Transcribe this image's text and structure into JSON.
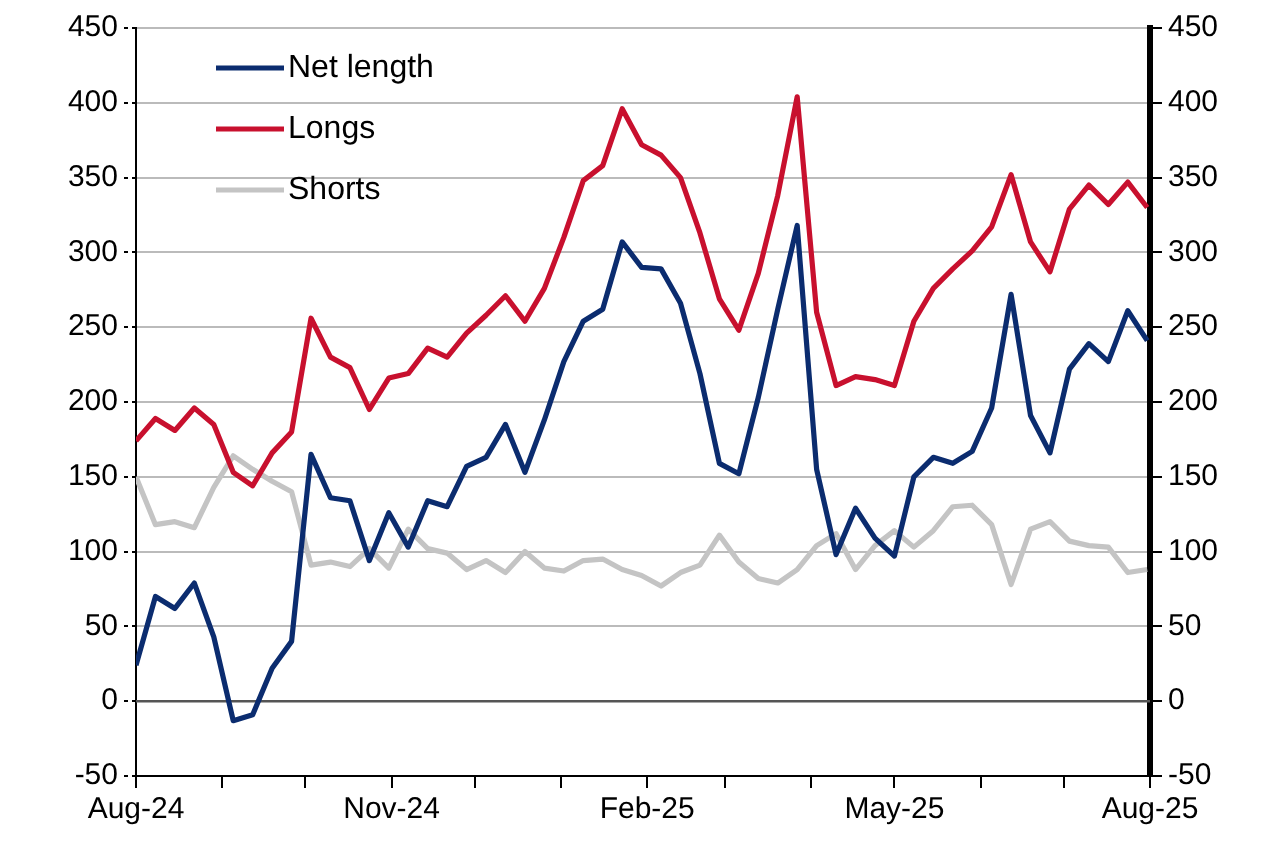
{
  "chart_data": {
    "type": "line",
    "x": [
      "2024-08-01",
      "2024-08-08",
      "2024-08-15",
      "2024-08-22",
      "2024-08-29",
      "2024-09-05",
      "2024-09-12",
      "2024-09-19",
      "2024-09-26",
      "2024-10-03",
      "2024-10-10",
      "2024-10-17",
      "2024-10-24",
      "2024-10-31",
      "2024-11-07",
      "2024-11-14",
      "2024-11-21",
      "2024-11-28",
      "2024-12-05",
      "2024-12-12",
      "2024-12-19",
      "2024-12-26",
      "2025-01-02",
      "2025-01-09",
      "2025-01-16",
      "2025-01-23",
      "2025-01-30",
      "2025-02-06",
      "2025-02-13",
      "2025-02-20",
      "2025-02-27",
      "2025-03-06",
      "2025-03-13",
      "2025-03-20",
      "2025-03-27",
      "2025-04-03",
      "2025-04-10",
      "2025-04-17",
      "2025-04-24",
      "2025-05-01",
      "2025-05-08",
      "2025-05-15",
      "2025-05-22",
      "2025-05-29",
      "2025-06-05",
      "2025-06-12",
      "2025-06-19",
      "2025-06-26",
      "2025-07-03",
      "2025-07-10",
      "2025-07-17",
      "2025-07-24",
      "2025-07-31"
    ],
    "series": [
      {
        "name": "Net length",
        "color": "#0b2c6f",
        "values": [
          24,
          70,
          62,
          79,
          43,
          -13,
          -9,
          22,
          40,
          165,
          136,
          134,
          94,
          126,
          103,
          134,
          130,
          157,
          163,
          185,
          153,
          188,
          227,
          254,
          262,
          307,
          290,
          289,
          266,
          219,
          159,
          152,
          203,
          262,
          318,
          155,
          98,
          129,
          109,
          97,
          150,
          163,
          159,
          167,
          196,
          272,
          191,
          166,
          222,
          239,
          227,
          261,
          241
        ]
      },
      {
        "name": "Longs",
        "color": "#c8102e",
        "values": [
          174,
          189,
          181,
          196,
          185,
          153,
          144,
          166,
          180,
          256,
          230,
          223,
          195,
          216,
          219,
          236,
          230,
          246,
          258,
          271,
          254,
          276,
          310,
          348,
          358,
          396,
          372,
          365,
          350,
          313,
          269,
          248,
          286,
          338,
          404,
          260,
          211,
          217,
          215,
          211,
          254,
          276,
          289,
          301,
          317,
          352,
          307,
          287,
          329,
          345,
          332,
          347,
          330
        ]
      },
      {
        "name": "Shorts",
        "color": "#c4c4c4",
        "values": [
          150,
          118,
          120,
          116,
          143,
          164,
          155,
          147,
          140,
          91,
          93,
          90,
          102,
          89,
          115,
          102,
          99,
          88,
          94,
          86,
          100,
          89,
          87,
          94,
          95,
          88,
          84,
          77,
          86,
          91,
          111,
          93,
          82,
          79,
          88,
          104,
          112,
          88,
          104,
          114,
          103,
          114,
          130,
          131,
          118,
          78,
          115,
          120,
          107,
          104,
          103,
          86,
          88
        ]
      }
    ],
    "xlim": [
      "2024-08-01",
      "2025-08-01"
    ],
    "xticks": [
      {
        "value": "2024-08-01",
        "label": "Aug-24"
      },
      {
        "value": "2024-09-01",
        "label": null
      },
      {
        "value": "2024-10-01",
        "label": null
      },
      {
        "value": "2024-11-01",
        "label": "Nov-24"
      },
      {
        "value": "2024-12-01",
        "label": null
      },
      {
        "value": "2025-01-01",
        "label": null
      },
      {
        "value": "2025-02-01",
        "label": "Feb-25"
      },
      {
        "value": "2025-03-01",
        "label": null
      },
      {
        "value": "2025-04-01",
        "label": null
      },
      {
        "value": "2025-05-01",
        "label": "May-25"
      },
      {
        "value": "2025-06-01",
        "label": null
      },
      {
        "value": "2025-07-01",
        "label": null
      },
      {
        "value": "2025-08-01",
        "label": "Aug-25"
      }
    ],
    "ylim": [
      -50,
      450
    ],
    "yticks": [
      -50,
      0,
      50,
      100,
      150,
      200,
      250,
      300,
      350,
      400,
      450
    ],
    "y2lim": [
      -50,
      450
    ],
    "y2ticks": [
      -50,
      0,
      50,
      100,
      150,
      200,
      250,
      300,
      350,
      400,
      450
    ],
    "ref_lines": [
      {
        "axis": "y",
        "value": 0,
        "color": "#555555"
      }
    ],
    "grid": "y",
    "legend": "top left",
    "marker": "none",
    "line_style": "solid"
  }
}
